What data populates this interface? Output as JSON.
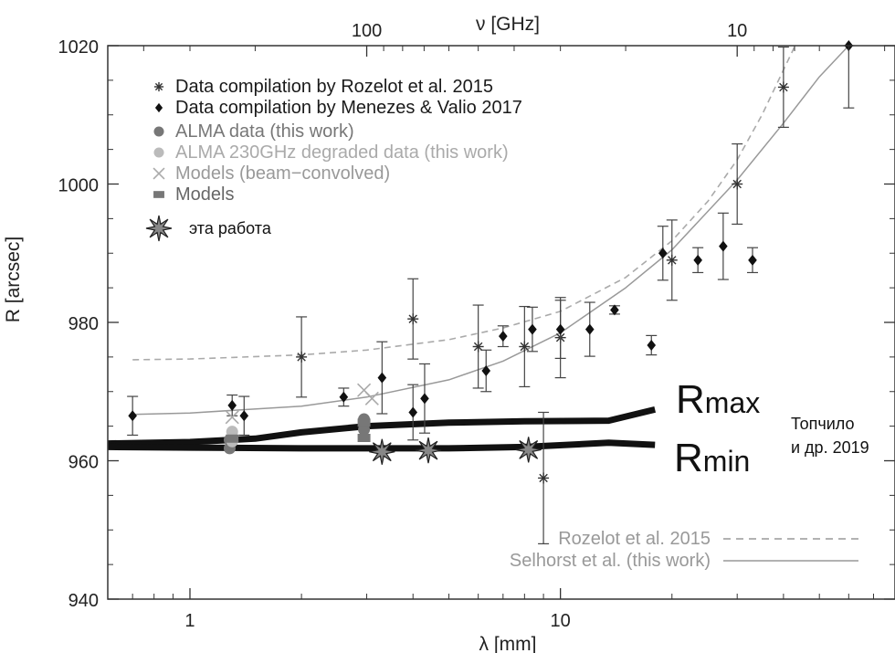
{
  "chart_data": {
    "type": "scatter",
    "xlabel": "λ [mm]",
    "ylabel": "R [arcsec]",
    "top_axis_label": "ν [GHz]",
    "x_scale": "log",
    "xlim": [
      0.6,
      80
    ],
    "ylim": [
      940,
      1020
    ],
    "x_ticks": [
      1,
      10
    ],
    "x_tick_labels": [
      "1",
      "10"
    ],
    "y_ticks": [
      940,
      960,
      980,
      1000,
      1020
    ],
    "y_tick_labels": [
      "940",
      "960",
      "980",
      "1000",
      "1020"
    ],
    "top_ticks": [
      100,
      10
    ],
    "top_tick_labels": [
      "100",
      "10"
    ],
    "grid": false,
    "legend": {
      "position": "top-left",
      "entries": [
        {
          "label": "Data compilation by Rozelot et al. 2015",
          "marker": "asterisk",
          "color": "#333333",
          "text_color": "#1a1a1a"
        },
        {
          "label": "Data compilation by Menezes & Valio 2017",
          "marker": "diamond",
          "color": "#111111",
          "text_color": "#1a1a1a"
        },
        {
          "label": "ALMA data (this work)",
          "marker": "circle",
          "color": "#777777",
          "text_color": "#777777"
        },
        {
          "label": "ALMA 230GHz degraded data (this work)",
          "marker": "circle",
          "color": "#bbbbbb",
          "text_color": "#aaaaaa"
        },
        {
          "label": "Models (beam−convolved)",
          "marker": "x",
          "color": "#aaaaaa",
          "text_color": "#999999"
        },
        {
          "label": "Models",
          "marker": "square",
          "color": "#777777",
          "text_color": "#666666"
        },
        {
          "label": "эта работа",
          "marker": "star",
          "color": "#888888",
          "text_color": "#111111"
        }
      ]
    },
    "line_legend": [
      {
        "label": "Rozelot et al. 2015",
        "style": "dashed"
      },
      {
        "label": "Selhorst et al. (this work)",
        "style": "solid"
      }
    ],
    "series": [
      {
        "name": "Data compilation by Rozelot et al. 2015",
        "marker": "asterisk",
        "points": [
          {
            "x": 2.0,
            "y": 975.0,
            "err": 5.8
          },
          {
            "x": 4.0,
            "y": 980.5,
            "err": 5.8
          },
          {
            "x": 6.0,
            "y": 976.5,
            "err": 6.0
          },
          {
            "x": 8.0,
            "y": 976.5,
            "err": 5.8
          },
          {
            "x": 9.0,
            "y": 957.5,
            "err": 9.5
          },
          {
            "x": 10.0,
            "y": 977.8,
            "err": 5.8
          },
          {
            "x": 20.0,
            "y": 989.0,
            "err": 5.8
          },
          {
            "x": 30.0,
            "y": 1000.0,
            "err": 5.8
          },
          {
            "x": 40.0,
            "y": 1014.0,
            "err": 5.8
          }
        ]
      },
      {
        "name": "Data compilation by Menezes & Valio 2017",
        "marker": "diamond",
        "points": [
          {
            "x": 0.7,
            "y": 966.5,
            "err": 2.8
          },
          {
            "x": 1.3,
            "y": 968.0,
            "err": 1.5
          },
          {
            "x": 1.4,
            "y": 966.5,
            "err": 2.8
          },
          {
            "x": 2.6,
            "y": 969.2,
            "err": 1.3
          },
          {
            "x": 3.3,
            "y": 972.0,
            "err": 5.2
          },
          {
            "x": 4.0,
            "y": 967.0,
            "err": 4.0
          },
          {
            "x": 4.3,
            "y": 969.0,
            "err": 5.0
          },
          {
            "x": 6.3,
            "y": 973.0,
            "err": 3.0
          },
          {
            "x": 7.0,
            "y": 978.0,
            "err": 1.5
          },
          {
            "x": 8.4,
            "y": 979.0,
            "err": 3.2
          },
          {
            "x": 10.0,
            "y": 979.0,
            "err": 4.2
          },
          {
            "x": 12.0,
            "y": 979.0,
            "err": 3.9
          },
          {
            "x": 14.0,
            "y": 981.8,
            "err": 0.6
          },
          {
            "x": 17.6,
            "y": 976.7,
            "err": 1.4
          },
          {
            "x": 18.9,
            "y": 990.0,
            "err": 3.9
          },
          {
            "x": 23.5,
            "y": 989.0,
            "err": 1.8
          },
          {
            "x": 27.5,
            "y": 991.0,
            "err": 4.8
          },
          {
            "x": 33.0,
            "y": 989.0,
            "err": 1.8
          },
          {
            "x": 60.0,
            "y": 1020.0,
            "err": 9.0
          }
        ]
      },
      {
        "name": "ALMA data (this work)",
        "marker": "circle",
        "points": [
          {
            "x": 1.28,
            "y": 963.0
          },
          {
            "x": 1.28,
            "y": 961.8
          },
          {
            "x": 2.95,
            "y": 966.0
          },
          {
            "x": 2.95,
            "y": 964.5
          }
        ]
      },
      {
        "name": "ALMA 230GHz degraded data (this work)",
        "marker": "circle",
        "points": [
          {
            "x": 1.3,
            "y": 964.2
          },
          {
            "x": 1.3,
            "y": 962.8
          }
        ]
      },
      {
        "name": "Models (beam−convolved)",
        "marker": "x",
        "points": [
          {
            "x": 1.3,
            "y": 966.3
          },
          {
            "x": 2.95,
            "y": 970.2
          },
          {
            "x": 3.1,
            "y": 969.0
          }
        ]
      },
      {
        "name": "Models",
        "marker": "square",
        "points": [
          {
            "x": 1.3,
            "y": 963.2
          },
          {
            "x": 2.95,
            "y": 965.5
          },
          {
            "x": 2.95,
            "y": 963.3
          }
        ]
      },
      {
        "name": "эта работа",
        "marker": "star",
        "points": [
          {
            "x": 3.3,
            "y": 961.3
          },
          {
            "x": 4.4,
            "y": 961.5
          },
          {
            "x": 8.2,
            "y": 961.6
          }
        ]
      }
    ],
    "curves": [
      {
        "name": "Rozelot et al. 2015",
        "style": "dashed",
        "color": "#aaaaaa",
        "points": [
          [
            0.7,
            974.6
          ],
          [
            1,
            974.7
          ],
          [
            2,
            975.3
          ],
          [
            3,
            976.0
          ],
          [
            5,
            977.5
          ],
          [
            7,
            979.2
          ],
          [
            10,
            981.6
          ],
          [
            15,
            986.5
          ],
          [
            20,
            991.8
          ],
          [
            25,
            997.5
          ],
          [
            30,
            1003.5
          ],
          [
            35,
            1010.0
          ],
          [
            40,
            1016.5
          ],
          [
            43,
            1020.0
          ]
        ]
      },
      {
        "name": "Selhorst et al. (this work)",
        "style": "solid",
        "color": "#999999",
        "points": [
          [
            0.7,
            966.7
          ],
          [
            1,
            966.9
          ],
          [
            2,
            967.9
          ],
          [
            3,
            969.2
          ],
          [
            5,
            971.7
          ],
          [
            7,
            974.4
          ],
          [
            10,
            978.5
          ],
          [
            15,
            985.0
          ],
          [
            20,
            990.5
          ],
          [
            30,
            1000.6
          ],
          [
            40,
            1008.8
          ],
          [
            50,
            1015.5
          ],
          [
            60,
            1021.0
          ]
        ]
      },
      {
        "name": "Rmax",
        "style": "bold",
        "color": "#111111",
        "points": [
          [
            0.6,
            962.5
          ],
          [
            1.0,
            962.7
          ],
          [
            1.5,
            963.2
          ],
          [
            2.0,
            964.1
          ],
          [
            3.0,
            965.0
          ],
          [
            5.0,
            965.5
          ],
          [
            8.0,
            965.7
          ],
          [
            13.5,
            965.8
          ],
          [
            18.0,
            967.4
          ]
        ]
      },
      {
        "name": "Rmin",
        "style": "bold",
        "color": "#111111",
        "points": [
          [
            0.6,
            962.0
          ],
          [
            1.0,
            961.9
          ],
          [
            2.0,
            961.8
          ],
          [
            3.0,
            961.8
          ],
          [
            5.0,
            961.8
          ],
          [
            8.0,
            962.0
          ],
          [
            13.5,
            962.6
          ],
          [
            18.0,
            962.3
          ]
        ]
      }
    ],
    "annotations": {
      "rmax_main": "R",
      "rmax_sub": "max",
      "rmin_main": "R",
      "rmin_sub": "min",
      "citation_line1": "Топчило",
      "citation_line2": "и др. 2019"
    }
  }
}
